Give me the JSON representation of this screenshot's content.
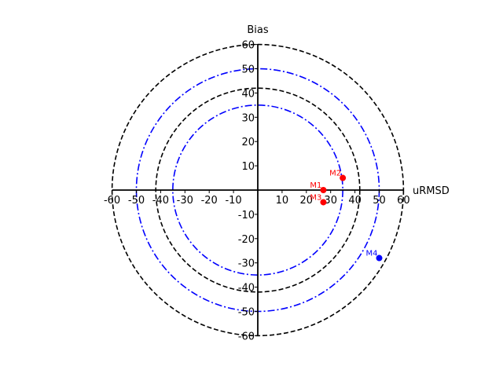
{
  "chart_data": {
    "type": "scatter",
    "title": "",
    "xlabel": "uRMSD",
    "ylabel": "Bias",
    "xlim": [
      -60,
      60
    ],
    "ylim": [
      -60,
      60
    ],
    "grid": false,
    "x_ticks": [
      -60,
      -50,
      -40,
      -30,
      -20,
      -10,
      10,
      20,
      30,
      40,
      50,
      60
    ],
    "y_ticks": [
      -60,
      -50,
      -40,
      -30,
      -20,
      -10,
      10,
      20,
      30,
      40,
      50,
      60
    ],
    "reference_circles": [
      {
        "radius": 60,
        "style": "dashed",
        "color": "#000000"
      },
      {
        "radius": 50,
        "style": "dashdot",
        "color": "#0000ff"
      },
      {
        "radius": 42,
        "style": "dashed",
        "color": "#000000"
      },
      {
        "radius": 35,
        "style": "dashdot",
        "color": "#0000ff"
      }
    ],
    "points": [
      {
        "label": "M1",
        "x": 27,
        "y": 0,
        "color": "#ff0000"
      },
      {
        "label": "M2",
        "x": 35,
        "y": 5,
        "color": "#ff0000"
      },
      {
        "label": "M3",
        "x": 27,
        "y": -5,
        "color": "#ff0000"
      },
      {
        "label": "M4",
        "x": 50,
        "y": -28,
        "color": "#0000ff"
      }
    ]
  }
}
